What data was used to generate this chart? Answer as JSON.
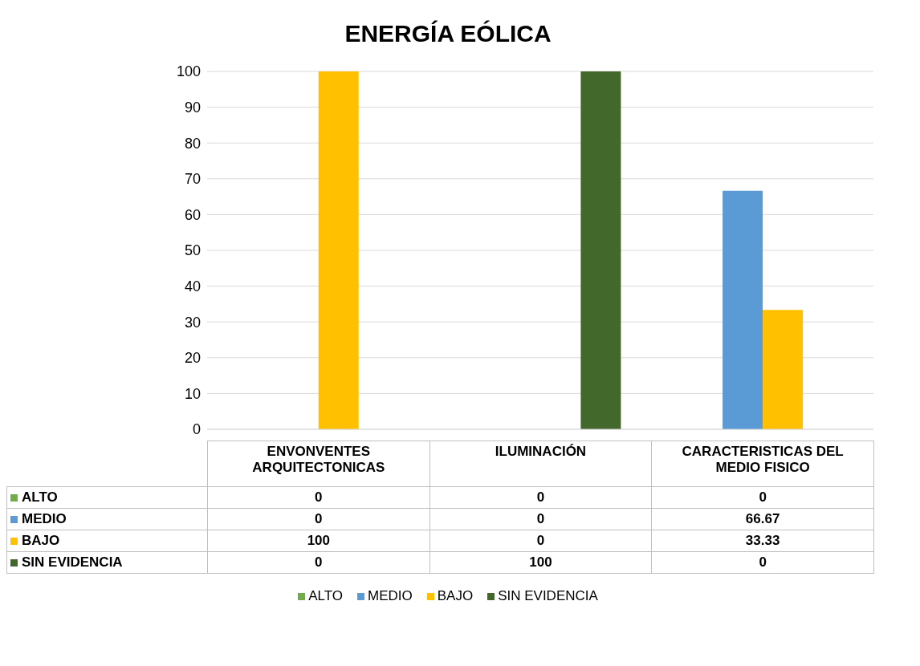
{
  "chart_data": {
    "type": "bar",
    "title": "ENERGÍA EÓLICA",
    "categories": [
      "ENVONVENTES ARQUITECTONICAS",
      "ILUMINACIÓN",
      "CARACTERISTICAS DEL MEDIO FISICO"
    ],
    "series": [
      {
        "name": "ALTO",
        "color": "#70ad47",
        "values": [
          0,
          0,
          0
        ]
      },
      {
        "name": "MEDIO",
        "color": "#5b9bd5",
        "values": [
          0,
          0,
          66.67
        ]
      },
      {
        "name": "BAJO",
        "color": "#ffc000",
        "values": [
          100,
          0,
          33.33
        ]
      },
      {
        "name": "SIN EVIDENCIA",
        "color": "#43682b",
        "values": [
          0,
          100,
          0
        ]
      }
    ],
    "ylim": [
      0,
      100
    ],
    "yticks": [
      0,
      10,
      20,
      30,
      40,
      50,
      60,
      70,
      80,
      90,
      100
    ],
    "grid": "y",
    "legend": "bottom",
    "data_labels": true
  }
}
